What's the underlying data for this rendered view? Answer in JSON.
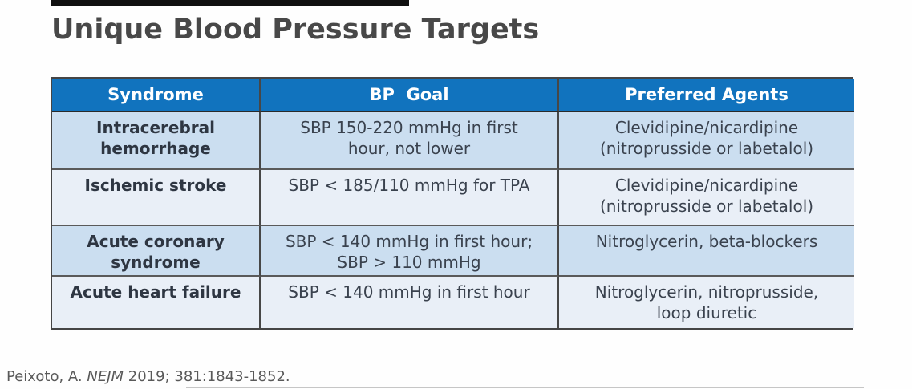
{
  "top_bar": {
    "color": "#101010"
  },
  "title": "Unique Blood Pressure Targets",
  "table": {
    "colors": {
      "header_bg": "#1173BE",
      "header_text": "#ffffff",
      "row_light_blue": "#CBDEF0",
      "row_pale": "#E9EFF7",
      "border": "#474747",
      "body_text": "#3a424e"
    },
    "columns": [
      "Syndrome",
      "BP  Goal",
      "Preferred Agents"
    ],
    "rows": [
      {
        "syndrome": "Intracerebral\nhemorrhage",
        "bp_goal": "SBP 150-220 mmHg in first\nhour, not lower",
        "preferred_agents": "Clevidipine/nicardipine\n(nitroprusside or labetalol)"
      },
      {
        "syndrome": "Ischemic stroke",
        "bp_goal": "SBP < 185/110 mmHg for TPA",
        "preferred_agents": "Clevidipine/nicardipine\n(nitroprusside or labetalol)"
      },
      {
        "syndrome": "Acute coronary\nsyndrome",
        "bp_goal": "SBP < 140 mmHg in first hour;\nSBP > 110 mmHg",
        "preferred_agents": "Nitroglycerin, beta-blockers"
      },
      {
        "syndrome": "Acute heart failure",
        "bp_goal": "SBP < 140 mmHg in first hour",
        "preferred_agents": "Nitroglycerin, nitroprusside,\nloop diuretic"
      }
    ]
  },
  "citation": {
    "prefix": "Peixoto, A. ",
    "journal": "NEJM",
    "suffix": " 2019; 381:1843-1852."
  }
}
